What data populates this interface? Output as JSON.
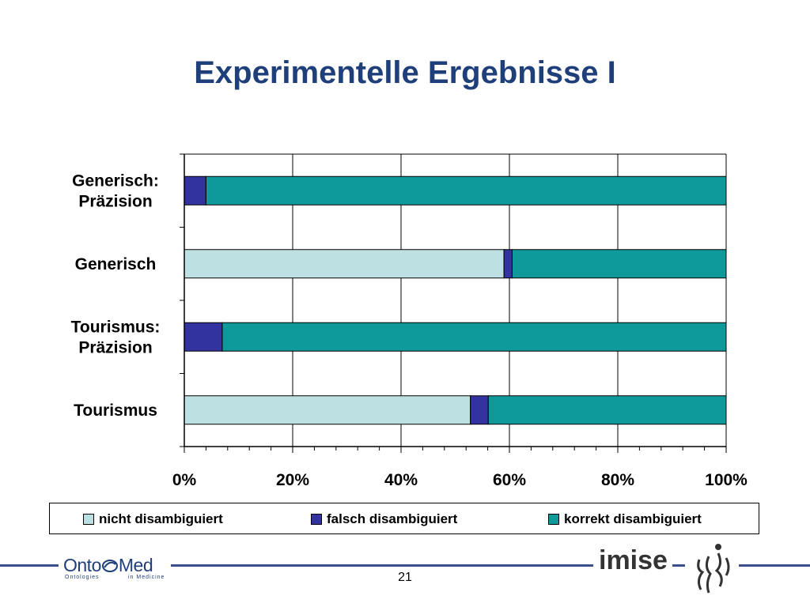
{
  "slide": {
    "title": "Experimentelle Ergebnisse I",
    "page_number": "21"
  },
  "logos": {
    "ontomed_onto": "Onto",
    "ontomed_med": "Med",
    "ontomed_sub_left": "Ontologies",
    "ontomed_sub_right": "in Medicine",
    "imise": "imise"
  },
  "colors": {
    "title": "#1f3f7a",
    "footer_line": "#3a4e8c"
  },
  "chart_data": {
    "type": "bar",
    "orientation": "horizontal",
    "stacked": "percent",
    "categories": [
      "Generisch: Präzision",
      "Generisch",
      "Tourismus: Präzision",
      "Tourismus"
    ],
    "category_label_lines": [
      [
        "Generisch:",
        "Präzision"
      ],
      [
        "Generisch"
      ],
      [
        "Tourismus:",
        "Präzision"
      ],
      [
        "Tourismus"
      ]
    ],
    "series": [
      {
        "name": "nicht disambiguiert",
        "color": "#bde0e3",
        "values": [
          0,
          59,
          0,
          52.8
        ]
      },
      {
        "name": "falsch disambiguiert",
        "color": "#3333a0",
        "values": [
          4,
          1.5,
          7,
          3.3
        ]
      },
      {
        "name": "korrekt disambiguiert",
        "color": "#0e9a9a",
        "values": [
          96,
          39.5,
          93,
          43.9
        ]
      }
    ],
    "xlim": [
      0,
      100
    ],
    "x_ticks": [
      "0%",
      "20%",
      "40%",
      "60%",
      "80%",
      "100%"
    ],
    "grid": true,
    "legend_position": "bottom",
    "xlabel": "",
    "ylabel": ""
  }
}
